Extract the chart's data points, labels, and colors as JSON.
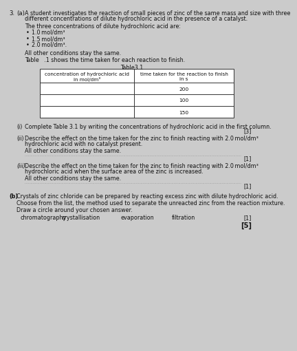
{
  "question_number": "3.",
  "part_a_label": "(a)",
  "intro_line1": "A student investigates the reaction of small pieces of zinc of the same mass and size with three",
  "intro_line2": "different concentrations of dilute hydrochloric acid in the presence of a catalyst.",
  "concentrations_intro": "The three concentrations of dilute hydrochloric acid are:",
  "concentrations": [
    "1.0 mol/dm³",
    "1.5 mol/dm³",
    "2.0 mol/dm³."
  ],
  "all_other": "All other conditions stay the same.",
  "table_intro": "Table   .1 shows the time taken for each reaction to finish.",
  "table_title": "Table3.1",
  "col1_header_line1": "concentration of hydrochloric acid",
  "col1_header_line2": "in mol/dm³",
  "col2_header_line1": "time taken for the reaction to finish",
  "col2_header_line2": "in s",
  "time_values": [
    "200",
    "100",
    "150"
  ],
  "part_i_label": "(i)",
  "part_i_text": "Complete Table 3.1 by writing the concentrations of hydrochloric acid in the first column.",
  "part_i_mark": "[3]",
  "part_ii_label": "(ii)",
  "part_ii_line1": "Describe the effect on the time taken for the zinc to finish reacting with 2.0 mol/dm³",
  "part_ii_line2": "hydrochloric acid with no catalyst present.",
  "part_ii_sub": "All other conditions stay the same.",
  "part_ii_mark": "[1]",
  "part_iii_label": "(iii)",
  "part_iii_line1": "Describe the effect on the time taken for the zinc to finish reacting with 2.0 mol/dm³",
  "part_iii_line2": "hydrochloric acid when the surface area of the zinc is increased.",
  "part_iii_sub": "All other conditions stay the same.",
  "part_iii_mark": "[1]",
  "part_b_label": "(b)",
  "part_b_line1": "Crystals of zinc chloride can be prepared by reacting excess zinc with dilute hydrochloric acid.",
  "part_b_choose": "Choose from the list, the method used to separate the unreacted zinc from the reaction mixture.",
  "part_b_circle": "Draw a circle around your chosen answer.",
  "answers": [
    "chromatography",
    "crystallisation",
    "evaporation",
    "filtration"
  ],
  "part_b_mark": "[1]",
  "total_mark": "[5]",
  "bg_color": "#cbcbcb",
  "text_color": "#111111",
  "table_bg": "#ffffff"
}
